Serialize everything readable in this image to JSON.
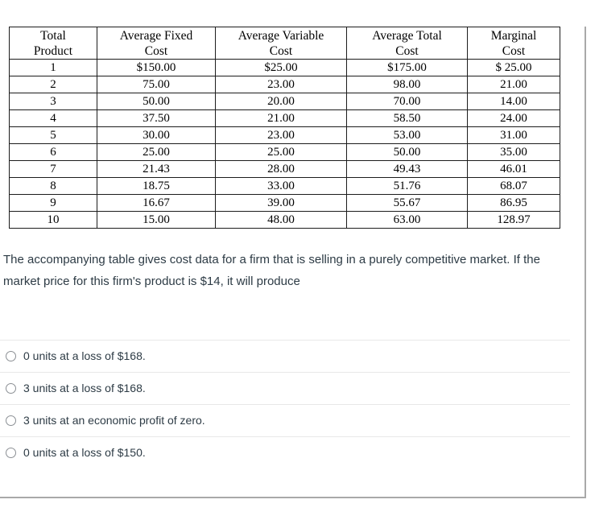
{
  "table": {
    "headers": [
      "Total\nProduct",
      "Average Fixed\nCost",
      "Average Variable\nCost",
      "Average Total\nCost",
      "Marginal\nCost"
    ],
    "rows": [
      [
        "1",
        "$150.00",
        "$25.00",
        "$175.00",
        "$ 25.00"
      ],
      [
        "2",
        "75.00",
        "23.00",
        "98.00",
        "21.00"
      ],
      [
        "3",
        "50.00",
        "20.00",
        "70.00",
        "14.00"
      ],
      [
        "4",
        "37.50",
        "21.00",
        "58.50",
        "24.00"
      ],
      [
        "5",
        "30.00",
        "23.00",
        "53.00",
        "31.00"
      ],
      [
        "6",
        "25.00",
        "25.00",
        "50.00",
        "35.00"
      ],
      [
        "7",
        "21.43",
        "28.00",
        "49.43",
        "46.01"
      ],
      [
        "8",
        "18.75",
        "33.00",
        "51.76",
        "68.07"
      ],
      [
        "9",
        "16.67",
        "39.00",
        "55.67",
        "86.95"
      ],
      [
        "10",
        "15.00",
        "48.00",
        "63.00",
        "128.97"
      ]
    ]
  },
  "question": {
    "text": "The accompanying table gives cost data for a firm that is selling in a purely competitive market. If the market price for this firm's product is $14, it will produce"
  },
  "options": [
    {
      "label": "0 units at a loss of $168."
    },
    {
      "label": "3 units at a loss of $168."
    },
    {
      "label": "3 units at an economic profit of zero."
    },
    {
      "label": "0 units at a loss of $150."
    }
  ],
  "colors": {
    "text_dark": "#2d3b45",
    "table_border": "#1c1c1c",
    "divider": "#e8e8e8",
    "panel_border": "#a9a9a9",
    "radio_border": "#8b8f94"
  }
}
